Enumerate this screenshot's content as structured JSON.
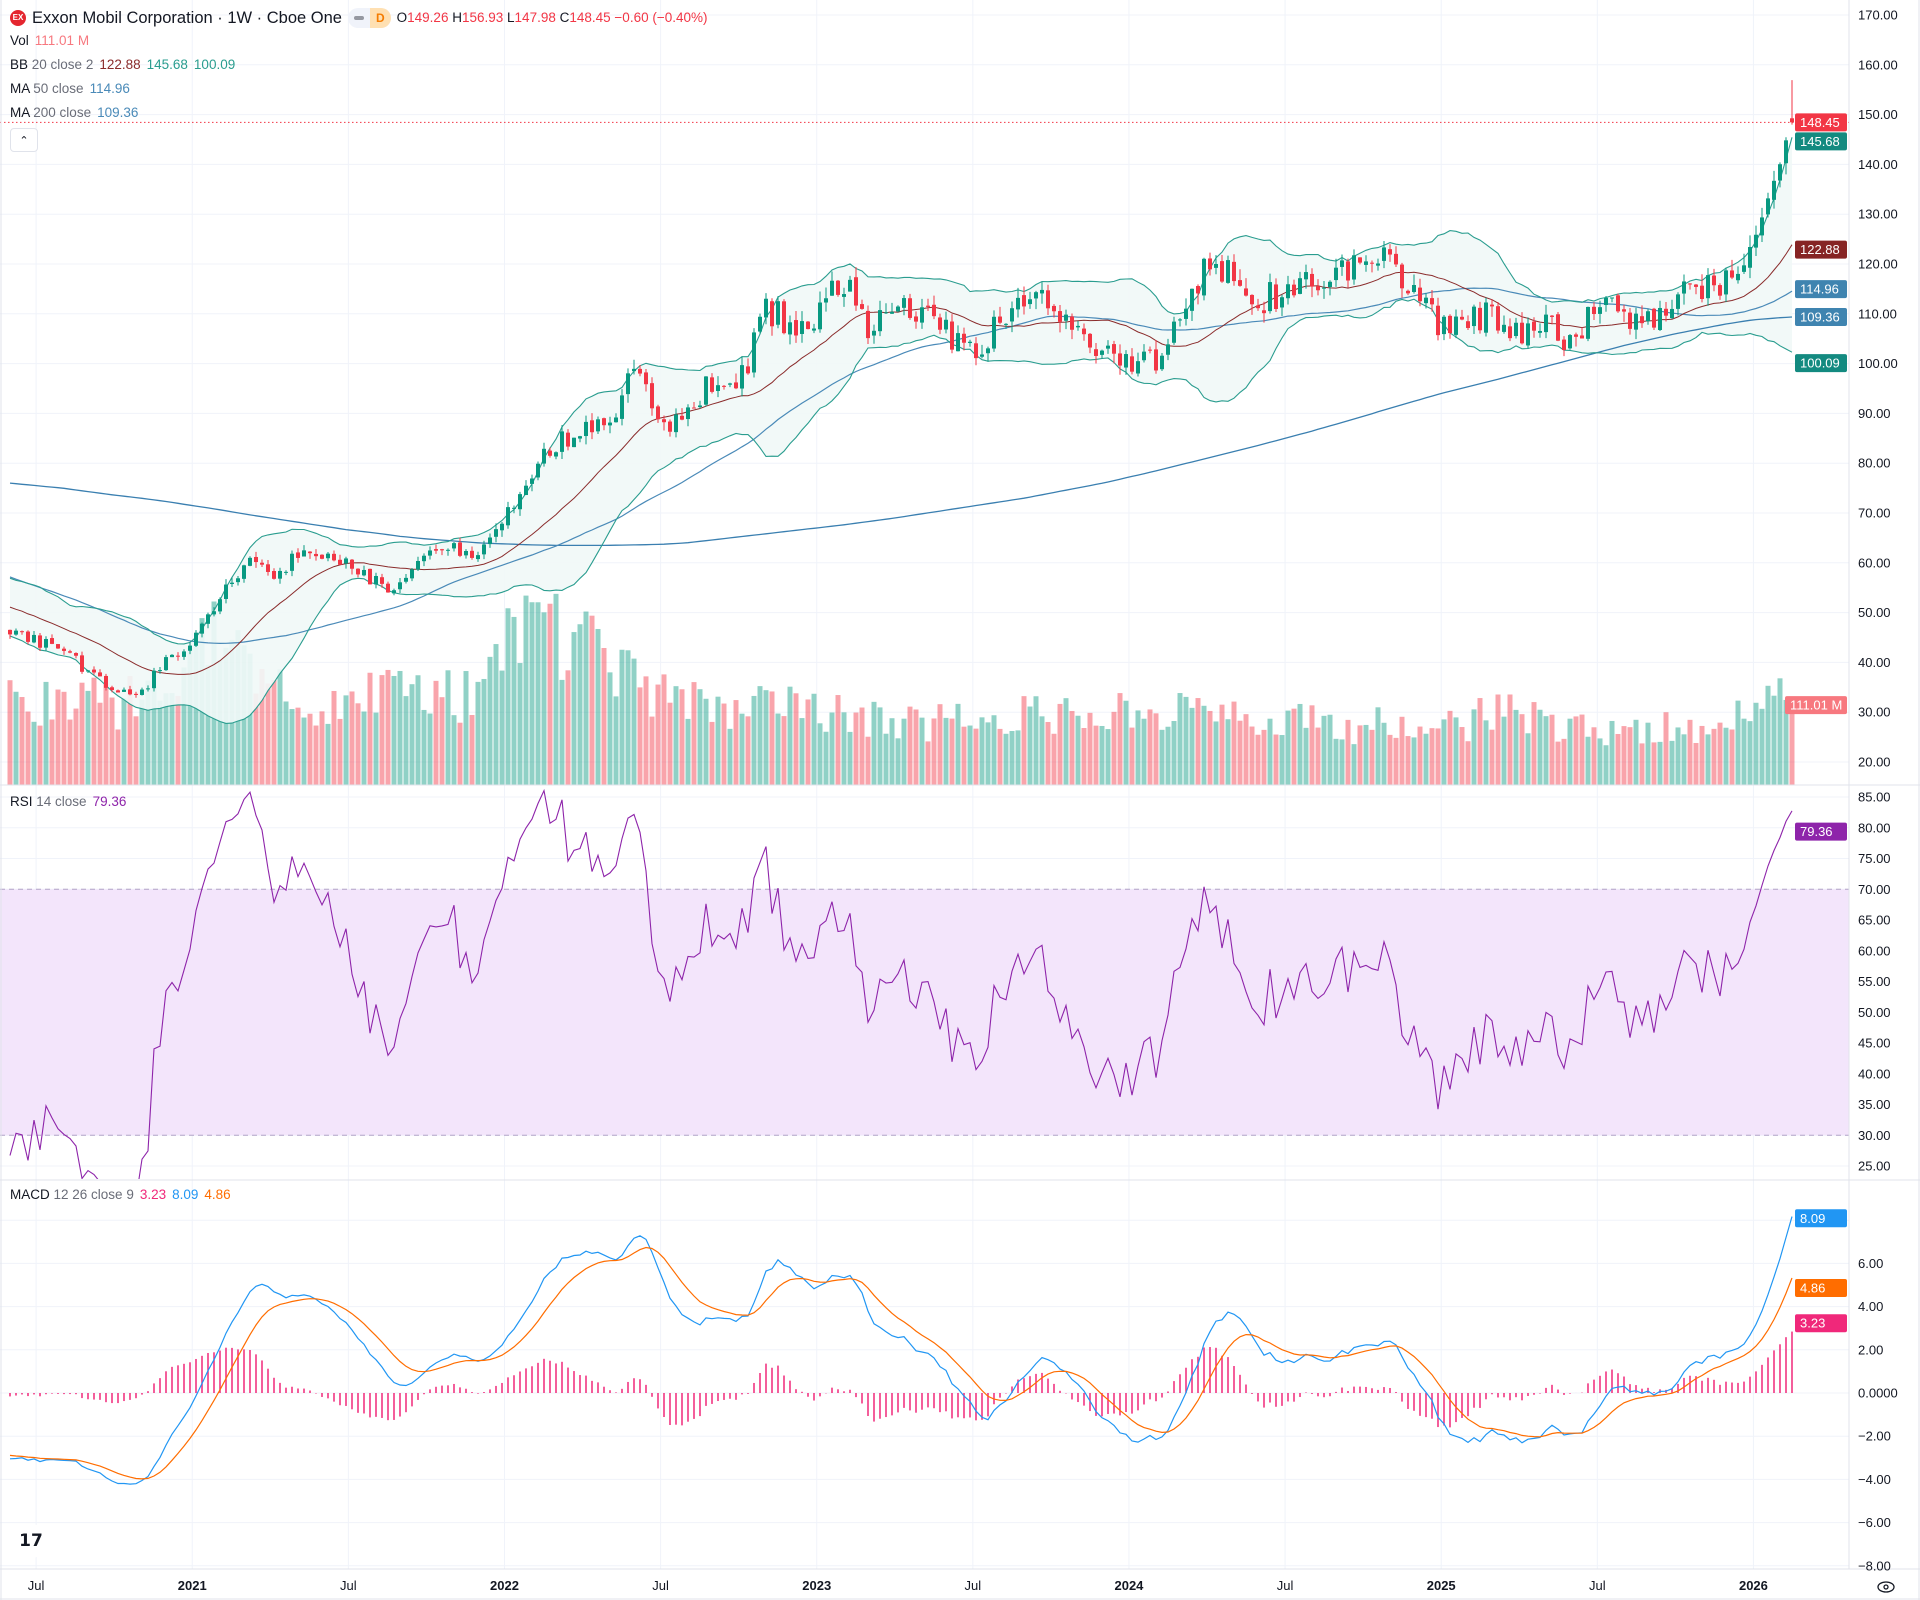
{
  "header": {
    "logo_text": "EX",
    "symbol": "Exxon Mobil Corporation · 1W · Cboe One",
    "badge": "D",
    "ohlc": {
      "o_label": "O",
      "o": "149.26",
      "h_label": "H",
      "h": "156.93",
      "l_label": "L",
      "l": "147.98",
      "c_label": "C",
      "c": "148.45",
      "change": "−0.60 (−0.40%)"
    }
  },
  "legend": {
    "vol": {
      "label": "Vol",
      "value": "111.01 M"
    },
    "bb": {
      "label": "BB",
      "params": "20 close 2",
      "basis": "122.88",
      "upper": "145.68",
      "lower": "100.09"
    },
    "ma50": {
      "label": "MA",
      "params": "50 close",
      "value": "114.96"
    },
    "ma200": {
      "label": "MA",
      "params": "200 close",
      "value": "109.36"
    },
    "rsi": {
      "label": "RSI",
      "params": "14 close",
      "value": "79.36"
    },
    "macd": {
      "label": "MACD",
      "params": "12 26 close 9",
      "hist": "3.23",
      "macd": "8.09",
      "signal": "4.86"
    }
  },
  "icons": {
    "logo": "exxon-logo",
    "collapse": "chevron-up-icon",
    "tradingview": "tradingview-logo",
    "settings": "eye-settings-icon"
  },
  "colors": {
    "up": "#089981",
    "down": "#f23645",
    "bb_band": "#2a9d8f",
    "bb_basis": "#8a2b2b",
    "bb_fill": "#f1f8f7",
    "ma50": "#4a8ab8",
    "ma200": "#3a7fb0",
    "rsi": "#8e24aa",
    "rsi_fill": "#f3e5fb",
    "macd": "#2196f3",
    "signal": "#ff6d00",
    "hist": "#f0287a",
    "grid": "#f0f3fa"
  },
  "chart_data": {
    "type": "candlestick",
    "timeframe": "1W",
    "months": [
      "2020-06",
      "2020-07",
      "2020-08",
      "2020-09",
      "2020-10",
      "2020-11",
      "2020-12",
      "2021-01",
      "2021-02",
      "2021-03",
      "2021-04",
      "2021-05",
      "2021-06",
      "2021-07",
      "2021-08",
      "2021-09",
      "2021-10",
      "2021-11",
      "2021-12",
      "2022-01",
      "2022-02",
      "2022-03",
      "2022-04",
      "2022-05",
      "2022-06",
      "2022-07",
      "2022-08",
      "2022-09",
      "2022-10",
      "2022-11",
      "2022-12",
      "2023-01",
      "2023-02",
      "2023-03",
      "2023-04",
      "2023-05",
      "2023-06",
      "2023-07",
      "2023-08",
      "2023-09",
      "2023-10",
      "2023-11",
      "2023-12",
      "2024-01",
      "2024-02",
      "2024-03",
      "2024-04",
      "2024-05",
      "2024-06",
      "2024-07",
      "2024-08",
      "2024-09",
      "2024-10",
      "2024-11",
      "2024-12",
      "2025-01",
      "2025-02",
      "2025-03",
      "2025-04",
      "2025-05",
      "2025-06",
      "2025-07",
      "2025-08",
      "2025-09",
      "2025-10",
      "2025-11",
      "2025-12",
      "2026-01",
      "2026-02"
    ],
    "monthly_close": [
      47,
      44,
      43,
      38,
      34,
      33,
      41,
      44,
      52,
      60,
      57,
      61,
      61,
      60,
      56,
      55,
      62,
      64,
      61,
      68,
      79,
      84,
      86,
      89,
      99,
      86,
      92,
      96,
      95,
      111,
      108,
      110,
      117,
      107,
      113,
      109,
      106,
      103,
      107,
      114,
      111,
      106,
      103,
      100,
      101,
      109,
      119,
      117,
      113,
      115,
      117,
      116,
      123,
      120,
      114,
      108,
      108,
      110,
      105,
      107,
      104,
      113,
      109,
      110,
      113,
      115,
      118,
      124,
      140
    ],
    "monthly_volume_m": [
      130,
      110,
      115,
      120,
      105,
      125,
      150,
      190,
      200,
      170,
      130,
      120,
      110,
      115,
      125,
      130,
      135,
      120,
      130,
      200,
      240,
      210,
      190,
      180,
      140,
      120,
      110,
      115,
      100,
      110,
      105,
      100,
      105,
      95,
      90,
      85,
      90,
      85,
      100,
      105,
      95,
      100,
      95,
      100,
      95,
      100,
      95,
      90,
      85,
      85,
      90,
      80,
      80,
      95,
      85,
      80,
      85,
      110,
      95,
      85,
      80,
      75,
      80,
      75,
      80,
      80,
      85,
      115,
      125
    ],
    "ma200_monthly": [
      76,
      75.5,
      75,
      74.3,
      73.6,
      73,
      72.3,
      71.5,
      70.7,
      69.8,
      69,
      68.2,
      67.4,
      66.6,
      66,
      65.3,
      64.8,
      64.4,
      64,
      63.8,
      63.6,
      63.5,
      63.5,
      63.5,
      63.6,
      63.7,
      64,
      64.6,
      65.2,
      65.8,
      66.4,
      67,
      67.6,
      68.3,
      69,
      69.8,
      70.6,
      71.4,
      72.2,
      73,
      74,
      75,
      76,
      77.2,
      78.4,
      79.7,
      81,
      82.3,
      83.6,
      85,
      86.4,
      87.9,
      89.4,
      91,
      92.5,
      94,
      95.3,
      96.6,
      98,
      99.4,
      100.8,
      102.2,
      103.6,
      104.8,
      106,
      107,
      108,
      108.8,
      109.2
    ],
    "last_bar": {
      "open": 149.26,
      "high": 156.93,
      "low": 147.98,
      "close": 148.45,
      "volume_m": 111.01
    },
    "last_values": {
      "bb_basis": 122.88,
      "bb_upper": 145.68,
      "bb_lower": 100.09,
      "ma50": 114.96,
      "ma200": 109.36,
      "rsi": 79.36,
      "macd": 8.09,
      "signal": 4.86,
      "hist": 3.23
    },
    "price_axis": {
      "ticks": [
        "170.00",
        "160.00",
        "150.00",
        "140.00",
        "130.00",
        "120.00",
        "110.00",
        "100.00",
        "90.00",
        "80.00",
        "70.00",
        "60.00",
        "50.00",
        "40.00",
        "30.00",
        "20.00"
      ],
      "range": [
        15,
        170
      ]
    },
    "rsi_axis": {
      "ticks": [
        "85.00",
        "80.00",
        "75.00",
        "70.00",
        "65.00",
        "60.00",
        "55.00",
        "50.00",
        "45.00",
        "40.00",
        "35.00",
        "30.00",
        "25.00"
      ],
      "upper_band": 70,
      "lower_band": 30
    },
    "macd_axis": {
      "ticks": [
        "6.00",
        "4.00",
        "2.00",
        "0.0000",
        "−2.00",
        "−4.00",
        "−6.00",
        "−8.00"
      ]
    },
    "time_axis": {
      "ticks": [
        "Jul",
        "2021",
        "Jul",
        "2022",
        "Jul",
        "2023",
        "Jul",
        "2024",
        "Jul",
        "2025",
        "Jul",
        "2026"
      ]
    },
    "grid": true
  }
}
